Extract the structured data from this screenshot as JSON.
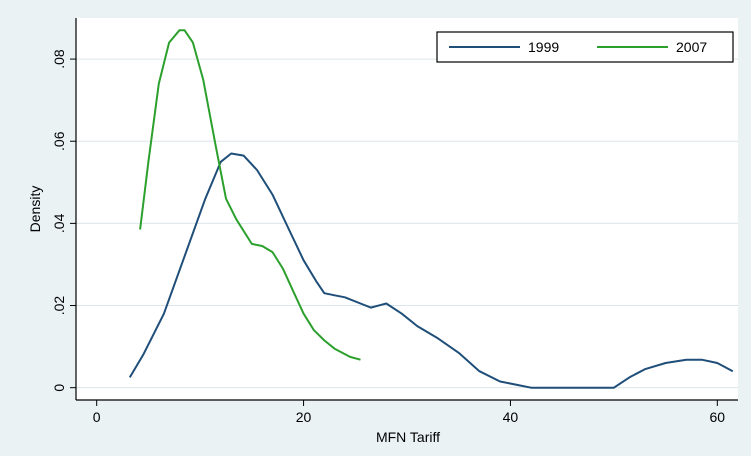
{
  "chart_data": {
    "type": "line",
    "title": "",
    "xlabel": "MFN Tariff",
    "ylabel": "Density",
    "xlim": [
      -2,
      62
    ],
    "ylim": [
      -0.003,
      0.09
    ],
    "x_ticks": [
      0,
      20,
      40,
      60
    ],
    "x_tick_labels": [
      "0",
      "20",
      "40",
      "60"
    ],
    "y_ticks": [
      0,
      0.02,
      0.04,
      0.06,
      0.08
    ],
    "y_tick_labels": [
      "0",
      ".02",
      ".04",
      ".06",
      ".08"
    ],
    "grid": "horizontal",
    "legend_position": "top-right",
    "colors": {
      "outer_background": "#eaf2f3",
      "plot_background": "#ffffff",
      "grid": "#dbe6ea"
    },
    "series": [
      {
        "name": "1999",
        "color": "#1f4e79",
        "x": [
          3.2,
          4.5,
          6.5,
          8.5,
          10.5,
          12.0,
          13.0,
          14.2,
          15.5,
          17.0,
          18.5,
          20.0,
          21.2,
          22.0,
          23.0,
          24.0,
          25.5,
          26.5,
          28.0,
          29.5,
          31.0,
          33.0,
          35.0,
          37.0,
          39.0,
          41.0,
          42.0,
          45.0,
          48.0,
          50.0,
          51.5,
          53.0,
          55.0,
          57.0,
          58.5,
          60.0,
          61.5
        ],
        "y": [
          0.0025,
          0.008,
          0.018,
          0.032,
          0.046,
          0.055,
          0.057,
          0.0565,
          0.053,
          0.047,
          0.039,
          0.031,
          0.026,
          0.023,
          0.0225,
          0.022,
          0.0205,
          0.0195,
          0.0205,
          0.018,
          0.015,
          0.012,
          0.0085,
          0.004,
          0.0015,
          0.0005,
          0.0,
          0.0,
          0.0,
          0.0,
          0.0025,
          0.0045,
          0.006,
          0.0068,
          0.0068,
          0.006,
          0.004
        ]
      },
      {
        "name": "2007",
        "color": "#2ca02c",
        "x": [
          4.2,
          5.0,
          6.0,
          7.0,
          8.0,
          8.5,
          9.3,
          10.3,
          11.5,
          12.5,
          13.5,
          15.0,
          16.0,
          17.0,
          18.0,
          19.0,
          20.0,
          21.0,
          22.0,
          23.0,
          24.5,
          25.5
        ],
        "y": [
          0.0385,
          0.055,
          0.074,
          0.084,
          0.087,
          0.087,
          0.084,
          0.075,
          0.059,
          0.046,
          0.041,
          0.035,
          0.0345,
          0.033,
          0.029,
          0.0235,
          0.018,
          0.014,
          0.0115,
          0.0095,
          0.0075,
          0.0068
        ]
      }
    ]
  }
}
